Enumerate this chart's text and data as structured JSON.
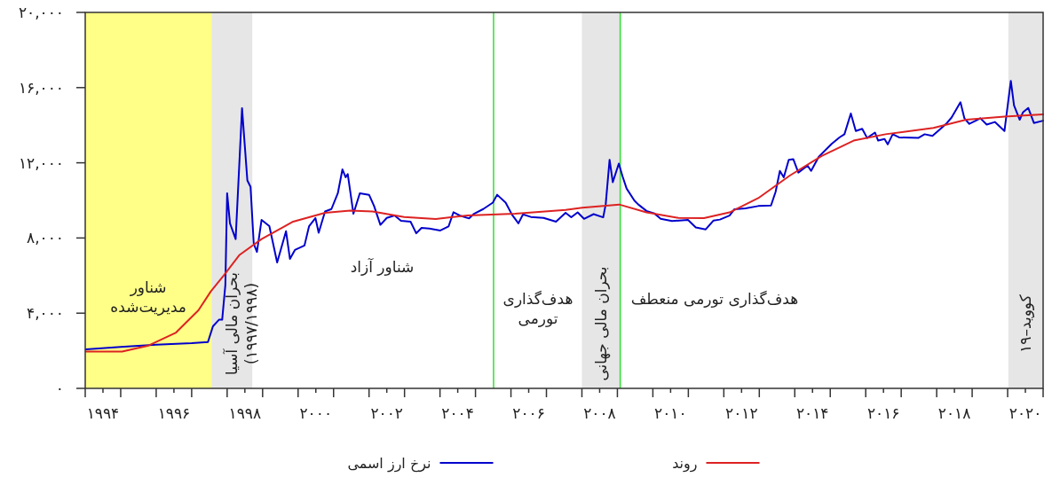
{
  "chart_data": {
    "type": "line",
    "xlim": [
      1994,
      2021
    ],
    "ylim": [
      0,
      20000
    ],
    "xticks": [
      {
        "value": 1994,
        "label": null
      },
      {
        "value": 1994.5,
        "label": "۱۹۹۴"
      },
      {
        "value": 1995,
        "label": null
      },
      {
        "value": 1996,
        "label": null
      },
      {
        "value": 1996.5,
        "label": "۱۹۹۶"
      },
      {
        "value": 1997,
        "label": null
      },
      {
        "value": 1998,
        "label": null
      },
      {
        "value": 1998.5,
        "label": "۱۹۹۸"
      },
      {
        "value": 1999,
        "label": null
      },
      {
        "value": 2000,
        "label": null
      },
      {
        "value": 2000.5,
        "label": "۲۰۰۰"
      },
      {
        "value": 2001,
        "label": null
      },
      {
        "value": 2002,
        "label": null
      },
      {
        "value": 2002.5,
        "label": "۲۰۰۲"
      },
      {
        "value": 2003,
        "label": null
      },
      {
        "value": 2004,
        "label": null
      },
      {
        "value": 2004.5,
        "label": "۲۰۰۴"
      },
      {
        "value": 2005,
        "label": null
      },
      {
        "value": 2006,
        "label": null
      },
      {
        "value": 2006.5,
        "label": "۲۰۰۶"
      },
      {
        "value": 2007,
        "label": null
      },
      {
        "value": 2008,
        "label": null
      },
      {
        "value": 2008.5,
        "label": "۲۰۰۸"
      },
      {
        "value": 2009,
        "label": null
      },
      {
        "value": 2010,
        "label": null
      },
      {
        "value": 2010.5,
        "label": "۲۰۱۰"
      },
      {
        "value": 2011,
        "label": null
      },
      {
        "value": 2012,
        "label": null
      },
      {
        "value": 2012.5,
        "label": "۲۰۱۲"
      },
      {
        "value": 2013,
        "label": null
      },
      {
        "value": 2014,
        "label": null
      },
      {
        "value": 2014.5,
        "label": "۲۰۱۴"
      },
      {
        "value": 2015,
        "label": null
      },
      {
        "value": 2016,
        "label": null
      },
      {
        "value": 2016.5,
        "label": "۲۰۱۶"
      },
      {
        "value": 2017,
        "label": null
      },
      {
        "value": 2018,
        "label": null
      },
      {
        "value": 2018.5,
        "label": "۲۰۱۸"
      },
      {
        "value": 2019,
        "label": null
      },
      {
        "value": 2020,
        "label": null
      },
      {
        "value": 2020.5,
        "label": "۲۰۲۰"
      },
      {
        "value": 2021,
        "label": null
      }
    ],
    "yticks": [
      {
        "value": 0,
        "label": "۰"
      },
      {
        "value": 4000,
        "label": "۴,۰۰۰"
      },
      {
        "value": 8000,
        "label": "۸,۰۰۰"
      },
      {
        "value": 12000,
        "label": "۱۲,۰۰۰"
      },
      {
        "value": 16000,
        "label": "۱۶,۰۰۰"
      },
      {
        "value": 20000,
        "label": "۲۰,۰۰۰"
      }
    ],
    "grid": false,
    "legend": "bottom",
    "line_style": "solid",
    "bands": [
      {
        "axis": "x",
        "from": 1994,
        "to": 1997.56,
        "label": "شناور\nمدیریت‌شده",
        "color": "#ffff88"
      },
      {
        "axis": "x",
        "from": 1997.56,
        "to": 1998.71,
        "label": "بحران مالی آسیا\n(۱۹۹۷/۱۹۹۸)",
        "color": "#e6e6e6"
      },
      {
        "axis": "x",
        "from": 2008.0,
        "to": 2009.08,
        "label": "بحران مالی جهانی",
        "color": "#e6e6e6"
      },
      {
        "axis": "x",
        "from": 2020.02,
        "to": 2021,
        "label": "کووید–۱۹",
        "color": "#e6e6e6"
      }
    ],
    "ref_lines": [
      {
        "axis": "x",
        "value": 2005.51,
        "label": "هدف‌گذاری\nتورمی",
        "color": "#33dd33"
      },
      {
        "axis": "x",
        "value": 2009.08,
        "label": "هدف‌گذاری تورمی منعطف",
        "color": "#33dd33"
      }
    ],
    "annotations": [
      "شناور آزاد"
    ],
    "series": [
      {
        "name": "نرخ ارز اسمی",
        "color": "#0000cc",
        "x": [
          1994.02,
          1995,
          1996,
          1997,
          1997.46,
          1997.6,
          1997.77,
          1997.86,
          1997.95,
          1998.0,
          1998.08,
          1998.24,
          1998.42,
          1998.57,
          1998.66,
          1998.75,
          1998.84,
          1998.97,
          1999.19,
          1999.41,
          1999.66,
          1999.77,
          1999.91,
          2000.18,
          2000.31,
          2000.49,
          2000.58,
          2000.76,
          2000.94,
          2001.12,
          2001.25,
          2001.34,
          2001.4,
          2001.56,
          2001.74,
          2002.0,
          2002.14,
          2002.32,
          2002.5,
          2002.72,
          2002.9,
          2003.17,
          2003.33,
          2003.48,
          2003.7,
          2004.01,
          2004.24,
          2004.38,
          2004.55,
          2004.82,
          2004.96,
          2005.22,
          2005.49,
          2005.61,
          2005.85,
          2006.03,
          2006.21,
          2006.34,
          2006.56,
          2006.92,
          2007.27,
          2007.54,
          2007.7,
          2007.88,
          2008.06,
          2008.33,
          2008.6,
          2008.67,
          2008.78,
          2008.87,
          2009.04,
          2009.14,
          2009.26,
          2009.48,
          2009.59,
          2009.82,
          2010.04,
          2010.22,
          2010.54,
          2010.99,
          2011.21,
          2011.49,
          2011.71,
          2011.89,
          2012.16,
          2012.3,
          2012.61,
          2012.97,
          2013.33,
          2013.46,
          2013.58,
          2013.69,
          2013.83,
          2013.96,
          2014.1,
          2014.36,
          2014.46,
          2014.68,
          2015.04,
          2015.26,
          2015.4,
          2015.58,
          2015.72,
          2015.9,
          2016.04,
          2016.26,
          2016.35,
          2016.53,
          2016.62,
          2016.76,
          2016.94,
          2017.48,
          2017.66,
          2017.88,
          2018.06,
          2018.29,
          2018.42,
          2018.67,
          2018.78,
          2018.92,
          2019.1,
          2019.23,
          2019.41,
          2019.64,
          2019.91,
          2020.09,
          2020.18,
          2020.34,
          2020.43,
          2020.58,
          2020.74,
          2021.0
        ],
        "values": [
          2080,
          2200,
          2320,
          2400,
          2470,
          3300,
          3650,
          3650,
          5500,
          10380,
          8780,
          7940,
          14900,
          11060,
          10720,
          7690,
          7260,
          8960,
          8630,
          6700,
          8360,
          6890,
          7360,
          7600,
          8630,
          9060,
          8280,
          9410,
          9540,
          10380,
          11650,
          11230,
          11400,
          9290,
          10380,
          10300,
          9710,
          8700,
          9070,
          9200,
          8920,
          8870,
          8250,
          8540,
          8500,
          8400,
          8610,
          9370,
          9200,
          9040,
          9290,
          9540,
          9880,
          10300,
          9880,
          9240,
          8780,
          9260,
          9120,
          9070,
          8870,
          9340,
          9100,
          9360,
          9020,
          9270,
          9100,
          9780,
          12160,
          10970,
          11960,
          11310,
          10630,
          9990,
          9780,
          9440,
          9310,
          9020,
          8900,
          8960,
          8560,
          8460,
          8930,
          8980,
          9190,
          9530,
          9580,
          9700,
          9730,
          10460,
          11570,
          11230,
          12160,
          12190,
          11480,
          11850,
          11570,
          12330,
          13010,
          13350,
          13520,
          14620,
          13690,
          13810,
          13320,
          13610,
          13180,
          13270,
          12980,
          13520,
          13350,
          13320,
          13520,
          13430,
          13730,
          14120,
          14410,
          15220,
          14370,
          14070,
          14240,
          14370,
          14030,
          14170,
          13690,
          16360,
          15050,
          14290,
          14680,
          14920,
          14120,
          14240
        ]
      },
      {
        "name": "روند",
        "color": "#dd2222",
        "x": [
          1994.02,
          1995.04,
          1995.76,
          1996.56,
          1997.19,
          1997.54,
          1997.9,
          1998.35,
          1998.97,
          1999.86,
          2000.76,
          2001.47,
          2002.1,
          2002.99,
          2003.88,
          2004.78,
          2006.12,
          2007.54,
          2008.01,
          2009.05,
          2009.82,
          2010.72,
          2011.44,
          2012.16,
          2012.97,
          2013.86,
          2014.76,
          2015.66,
          2016.56,
          2017.91,
          2018.83,
          2019.91,
          2021.0
        ],
        "values": [
          1960,
          1960,
          2260,
          2970,
          4150,
          5160,
          6000,
          7100,
          7940,
          8870,
          9340,
          9460,
          9410,
          9120,
          9010,
          9200,
          9290,
          9490,
          9610,
          9780,
          9360,
          9070,
          9060,
          9360,
          10120,
          11320,
          12360,
          13180,
          13520,
          13860,
          14290,
          14460,
          14580
        ]
      }
    ]
  }
}
